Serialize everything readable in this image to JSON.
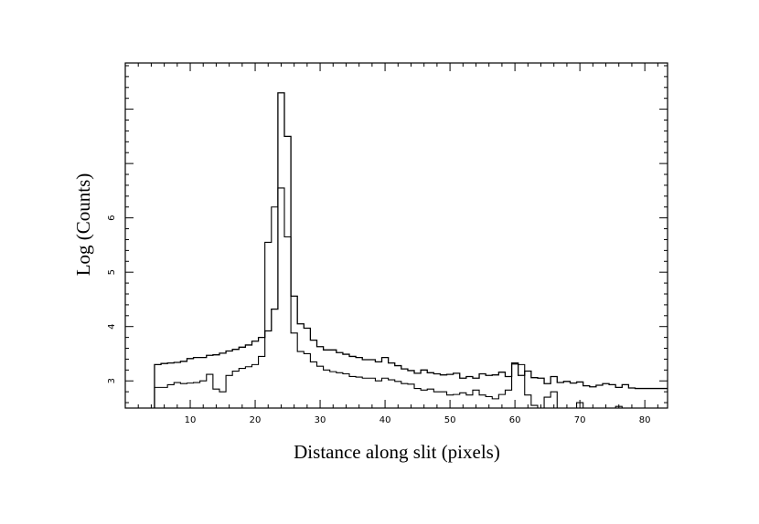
{
  "chart_data": {
    "type": "line",
    "title": "",
    "xlabel": "Distance along slit (pixels)",
    "ylabel": "Log (Counts)",
    "xlim": [
      0,
      83.5
    ],
    "ylim": [
      2.5,
      8.85
    ],
    "xticks": [
      10,
      20,
      30,
      40,
      50,
      60,
      70,
      80
    ],
    "xtick_labels": [
      "10",
      "20",
      "30",
      "40",
      "50",
      "60",
      "70",
      "80"
    ],
    "yticks": [
      3,
      4,
      5,
      6
    ],
    "ytick_labels": [
      "3",
      "4",
      "5",
      "6"
    ],
    "grid": false,
    "line_color": "#000000",
    "step": true,
    "series": [
      {
        "x": [
          4.5,
          5.5,
          6.5,
          7.5,
          8.5,
          9.5,
          10.5,
          11.5,
          12.5,
          13.5,
          14.5,
          15.5,
          16.5,
          17.5,
          18.5,
          19.5,
          20.5,
          21.5,
          22.5,
          23.5,
          24.5,
          25.5,
          26.5,
          27.5,
          28.5,
          29.5,
          30.5,
          31.5,
          32.5,
          33.5,
          34.5,
          35.5,
          36.5,
          37.5,
          38.5,
          39.5,
          40.5,
          41.5,
          42.5,
          43.5,
          44.5,
          45.5,
          46.5,
          47.5,
          48.5,
          49.5,
          50.5,
          51.5,
          52.5,
          53.5,
          54.5,
          55.5,
          56.5,
          57.5,
          58.5,
          59.5,
          60.5,
          61.5,
          62.5,
          63.5,
          64.5,
          65.5,
          66.5,
          67.5,
          68.5,
          69.5,
          70.5,
          71.5,
          72.5,
          73.5,
          74.5,
          75.5,
          76.5,
          77.5,
          78.5,
          83.5
        ],
        "y": [
          3.3,
          3.32,
          3.33,
          3.34,
          3.36,
          3.41,
          3.43,
          3.43,
          3.47,
          3.48,
          3.51,
          3.55,
          3.58,
          3.62,
          3.66,
          3.73,
          3.8,
          3.92,
          4.32,
          8.3,
          7.5,
          4.56,
          4.05,
          3.97,
          3.75,
          3.63,
          3.57,
          3.57,
          3.52,
          3.49,
          3.45,
          3.43,
          3.39,
          3.39,
          3.35,
          3.43,
          3.33,
          3.28,
          3.22,
          3.19,
          3.14,
          3.2,
          3.15,
          3.13,
          3.11,
          3.12,
          3.14,
          3.05,
          3.08,
          3.05,
          3.13,
          3.1,
          3.11,
          3.16,
          3.08,
          3.33,
          3.1,
          3.18,
          3.06,
          3.05,
          2.95,
          3.08,
          2.97,
          2.99,
          2.96,
          2.98,
          2.91,
          2.89,
          2.92,
          2.95,
          2.93,
          2.88,
          2.93,
          2.87,
          2.86,
          2.86
        ]
      },
      {
        "x": [
          4.5,
          5.5,
          6.5,
          7.5,
          8.5,
          9.5,
          10.5,
          11.5,
          12.5,
          13.5,
          14.5,
          15.5,
          16.5,
          17.5,
          18.5,
          19.5,
          20.5,
          21.5,
          22.5,
          23.5,
          24.5,
          25.5,
          26.5,
          27.5,
          28.5,
          29.5,
          30.5,
          31.5,
          32.5,
          33.5,
          34.5,
          35.5,
          36.5,
          37.5,
          38.5,
          39.5,
          40.5,
          41.5,
          42.5,
          43.5,
          44.5,
          45.5,
          46.5,
          47.5,
          48.5,
          49.5,
          50.5,
          51.5,
          52.5,
          53.5,
          54.5,
          55.5,
          56.5,
          57.5,
          58.5,
          59.5,
          60.5,
          61.5,
          62.5,
          63.5,
          64.5,
          65.5,
          66.5,
          67.5,
          68.5,
          69.5,
          70.5,
          71.5,
          72.5,
          73.5,
          74.5,
          75.5,
          76.5,
          77.5
        ],
        "y": [
          2.88,
          2.88,
          2.93,
          2.97,
          2.95,
          2.96,
          2.97,
          3.0,
          3.12,
          2.85,
          2.8,
          3.1,
          3.18,
          3.23,
          3.26,
          3.3,
          3.45,
          5.55,
          6.2,
          6.55,
          5.65,
          3.88,
          3.54,
          3.5,
          3.35,
          3.27,
          3.2,
          3.17,
          3.15,
          3.13,
          3.08,
          3.07,
          3.05,
          3.05,
          3.0,
          3.05,
          3.02,
          2.99,
          2.95,
          2.94,
          2.86,
          2.83,
          2.85,
          2.8,
          2.8,
          2.74,
          2.75,
          2.78,
          2.74,
          2.83,
          2.74,
          2.71,
          2.67,
          2.75,
          2.83,
          3.31,
          3.3,
          2.74,
          2.55,
          2.45,
          2.7,
          2.8,
          2.45,
          2.45,
          2.45,
          2.6,
          2.45,
          2.45,
          2.45,
          2.45,
          2.45,
          2.53,
          2.45,
          2.45
        ]
      }
    ]
  }
}
